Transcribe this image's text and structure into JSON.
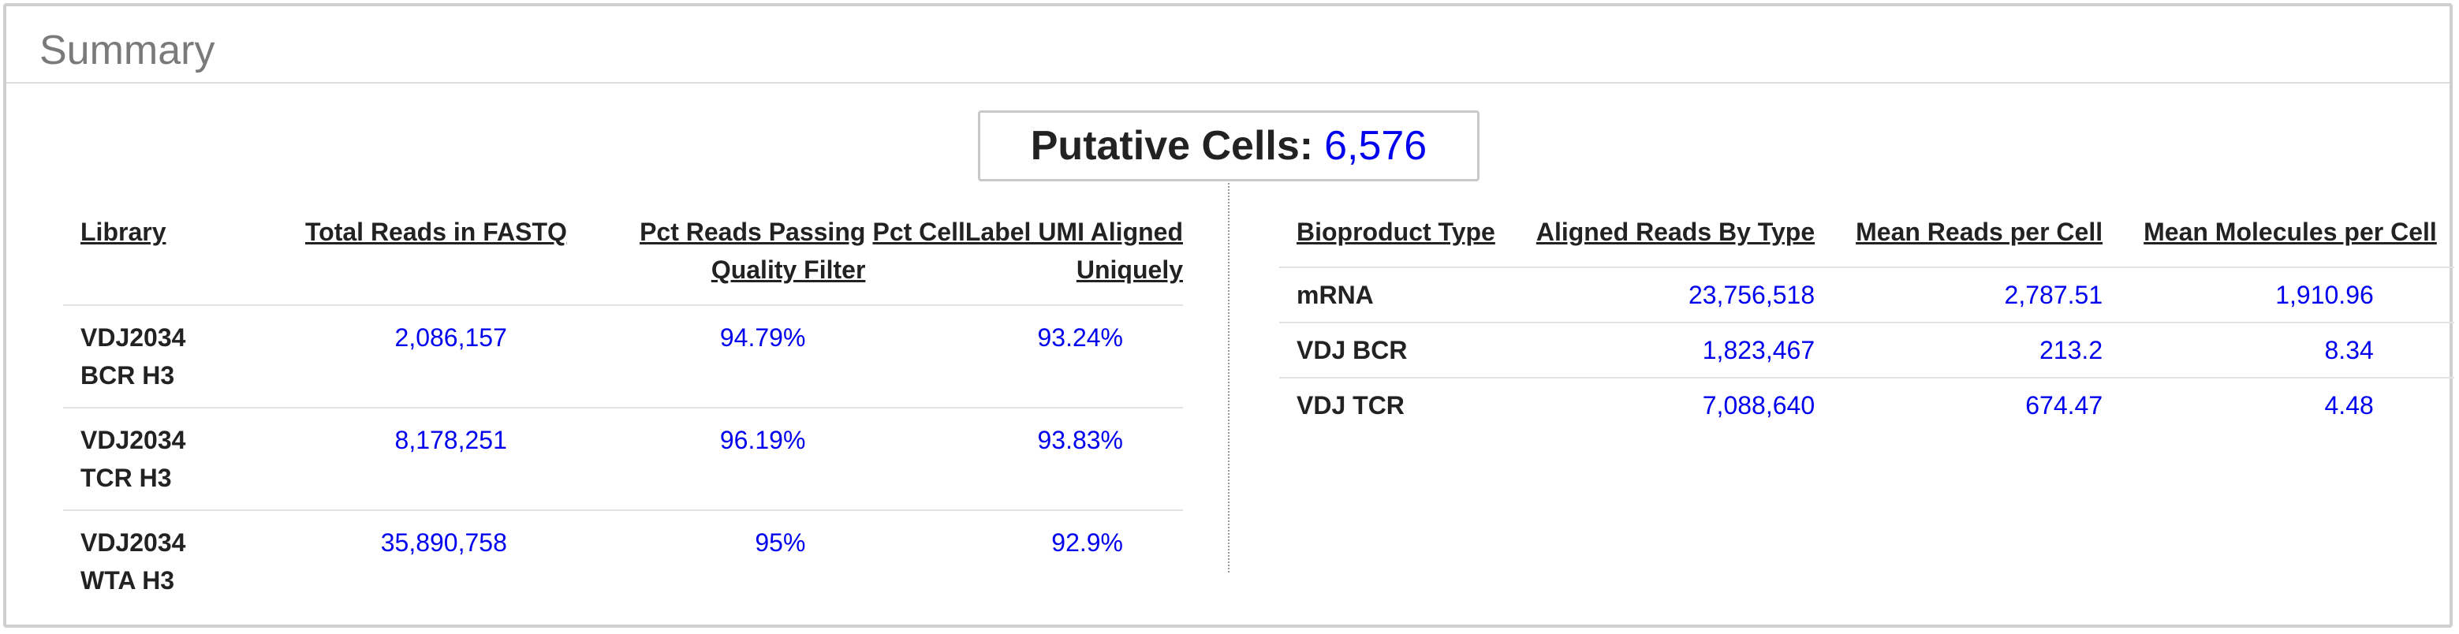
{
  "summary": {
    "title": "Summary",
    "putative_cells_label": "Putative Cells:",
    "putative_cells_value": "6,576"
  },
  "library_table": {
    "headers": [
      "Library",
      "Total Reads in FASTQ",
      "Pct Reads Passing Quality Filter",
      "Pct CellLabel UMI Aligned Uniquely"
    ],
    "rows": [
      {
        "library": "VDJ2034 BCR H3",
        "total_reads": "2,086,157",
        "pct_quality": "94.79%",
        "pct_umi": "93.24%"
      },
      {
        "library": "VDJ2034 TCR H3",
        "total_reads": "8,178,251",
        "pct_quality": "96.19%",
        "pct_umi": "93.83%"
      },
      {
        "library": "VDJ2034 WTA H3",
        "total_reads": "35,890,758",
        "pct_quality": "95%",
        "pct_umi": "92.9%"
      }
    ]
  },
  "bioproduct_table": {
    "headers": [
      "Bioproduct Type",
      "Aligned Reads By Type",
      "Mean Reads per Cell",
      "Mean Molecules per Cell"
    ],
    "rows": [
      {
        "type": "mRNA",
        "aligned_reads": "23,756,518",
        "mean_reads": "2,787.51",
        "mean_molecules": "1,910.96"
      },
      {
        "type": "VDJ BCR",
        "aligned_reads": "1,823,467",
        "mean_reads": "213.2",
        "mean_molecules": "8.34"
      },
      {
        "type": "VDJ TCR",
        "aligned_reads": "7,088,640",
        "mean_reads": "674.47",
        "mean_molecules": "4.48"
      }
    ]
  },
  "colors": {
    "link_value": "#0000ee",
    "title_gray": "#7a7a7a",
    "border_gray": "#cfcfcf"
  }
}
